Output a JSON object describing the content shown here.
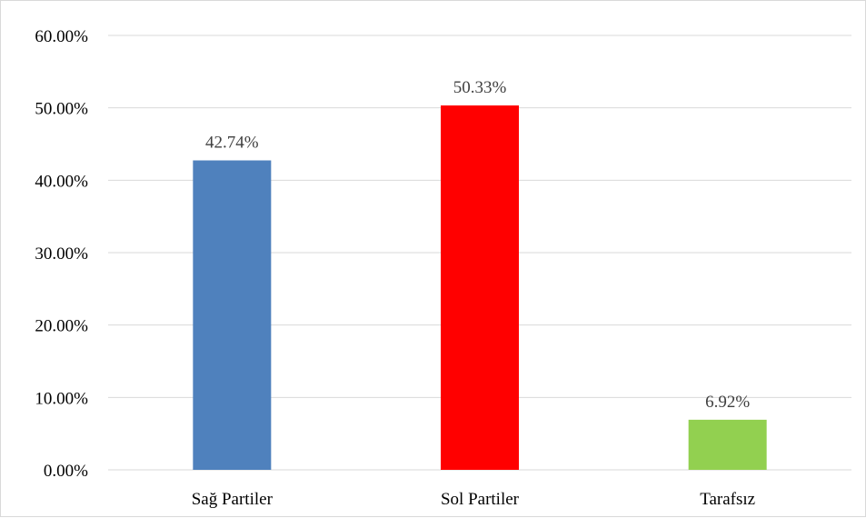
{
  "chart_data": {
    "type": "bar",
    "title": "",
    "xlabel": "",
    "ylabel": "",
    "categories": [
      "Sağ Partiler",
      "Sol Partiler",
      "Tarafsız"
    ],
    "values": [
      42.74,
      50.33,
      6.92
    ],
    "data_labels": [
      "42.74%",
      "50.33%",
      "6.92%"
    ],
    "colors": [
      "#4f81bd",
      "#ff0000",
      "#92d050"
    ],
    "ylim": [
      0,
      60
    ],
    "yticks": [
      0,
      10,
      20,
      30,
      40,
      50,
      60
    ],
    "ytick_labels": [
      "0.00%",
      "10.00%",
      "20.00%",
      "30.00%",
      "40.00%",
      "50.00%",
      "60.00%"
    ],
    "grid": true,
    "legend": "none"
  }
}
